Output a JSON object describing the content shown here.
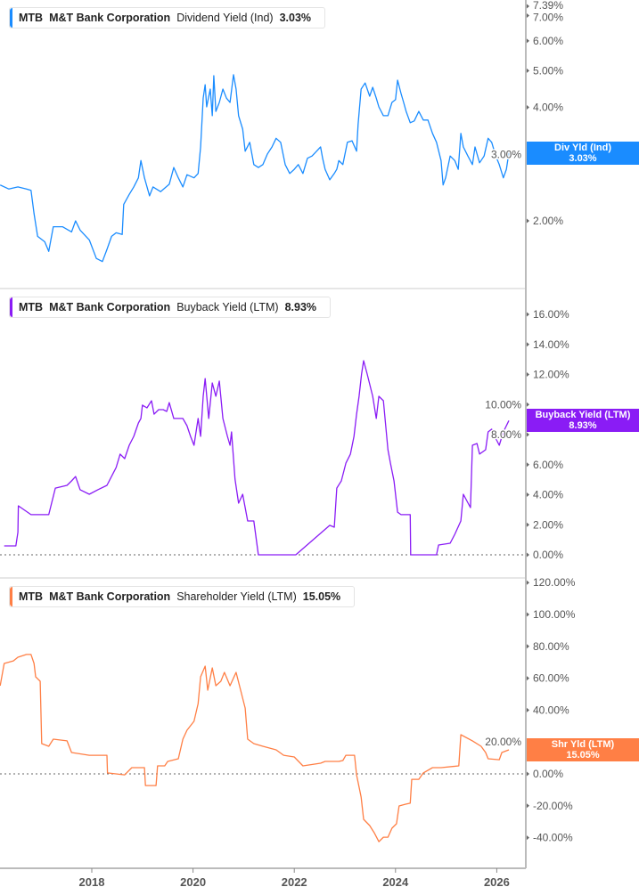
{
  "colors": {
    "div": "#1a8cff",
    "buyback": "#8a1cf5",
    "shareholder": "#ff7f45",
    "axis": "#bbbbbb"
  },
  "panels": [
    {
      "ticker": "MTB",
      "company": "M&T Bank Corporation",
      "metric": "Dividend Yield (Ind)",
      "value": "3.03%",
      "badge_label": "Div Yld (Ind)",
      "badge_value": "3.03%"
    },
    {
      "ticker": "MTB",
      "company": "M&T Bank Corporation",
      "metric": "Buyback Yield (LTM)",
      "value": "8.93%",
      "badge_label": "Buyback Yield (LTM)",
      "badge_value": "8.93%"
    },
    {
      "ticker": "MTB",
      "company": "M&T Bank Corporation",
      "metric": "Shareholder Yield (LTM)",
      "value": "15.05%",
      "badge_label": "Shr Yld (LTM)",
      "badge_value": "15.05%"
    }
  ],
  "chart_data": [
    {
      "type": "line",
      "scale": "log",
      "ylabel_unit": "%",
      "yticks": [
        2,
        3,
        4,
        5,
        6,
        7
      ],
      "ytick_labels": [
        "2.00%",
        "3.00%",
        "4.00%",
        "5.00%",
        "6.00%",
        "7.00%"
      ],
      "ymax_label": "7.39%",
      "last_value": 3.03,
      "points": [
        [
          2016.19,
          2.49
        ],
        [
          2016.36,
          2.43
        ],
        [
          2016.54,
          2.46
        ],
        [
          2016.71,
          2.43
        ],
        [
          2016.8,
          2.41
        ],
        [
          2016.86,
          2.09
        ],
        [
          2016.93,
          1.82
        ],
        [
          2017.07,
          1.76
        ],
        [
          2017.15,
          1.66
        ],
        [
          2017.24,
          1.93
        ],
        [
          2017.42,
          1.93
        ],
        [
          2017.6,
          1.87
        ],
        [
          2017.68,
          2.0
        ],
        [
          2017.77,
          1.89
        ],
        [
          2017.95,
          1.78
        ],
        [
          2018.09,
          1.59
        ],
        [
          2018.21,
          1.56
        ],
        [
          2018.3,
          1.68
        ],
        [
          2018.39,
          1.82
        ],
        [
          2018.48,
          1.86
        ],
        [
          2018.6,
          1.84
        ],
        [
          2018.63,
          2.21
        ],
        [
          2018.74,
          2.35
        ],
        [
          2018.83,
          2.46
        ],
        [
          2018.92,
          2.6
        ],
        [
          2018.97,
          2.89
        ],
        [
          2019.04,
          2.6
        ],
        [
          2019.14,
          2.33
        ],
        [
          2019.21,
          2.46
        ],
        [
          2019.36,
          2.39
        ],
        [
          2019.53,
          2.5
        ],
        [
          2019.62,
          2.77
        ],
        [
          2019.71,
          2.6
        ],
        [
          2019.8,
          2.46
        ],
        [
          2019.88,
          2.65
        ],
        [
          2020.02,
          2.6
        ],
        [
          2020.1,
          2.67
        ],
        [
          2020.15,
          3.14
        ],
        [
          2020.2,
          4.23
        ],
        [
          2020.24,
          4.59
        ],
        [
          2020.27,
          4.01
        ],
        [
          2020.34,
          4.47
        ],
        [
          2020.38,
          3.8
        ],
        [
          2020.41,
          4.85
        ],
        [
          2020.45,
          3.9
        ],
        [
          2020.52,
          4.12
        ],
        [
          2020.59,
          4.47
        ],
        [
          2020.66,
          4.23
        ],
        [
          2020.73,
          4.12
        ],
        [
          2020.8,
          4.88
        ],
        [
          2020.85,
          4.47
        ],
        [
          2020.9,
          3.8
        ],
        [
          2020.98,
          3.5
        ],
        [
          2021.03,
          3.06
        ],
        [
          2021.12,
          3.23
        ],
        [
          2021.2,
          2.82
        ],
        [
          2021.29,
          2.77
        ],
        [
          2021.38,
          2.82
        ],
        [
          2021.47,
          3.01
        ],
        [
          2021.56,
          3.14
        ],
        [
          2021.64,
          3.31
        ],
        [
          2021.73,
          3.23
        ],
        [
          2021.82,
          2.82
        ],
        [
          2021.91,
          2.67
        ],
        [
          2022.0,
          2.74
        ],
        [
          2022.08,
          2.82
        ],
        [
          2022.17,
          2.67
        ],
        [
          2022.26,
          2.93
        ],
        [
          2022.35,
          2.97
        ],
        [
          2022.44,
          3.06
        ],
        [
          2022.52,
          3.14
        ],
        [
          2022.56,
          2.93
        ],
        [
          2022.61,
          2.74
        ],
        [
          2022.7,
          2.57
        ],
        [
          2022.79,
          2.67
        ],
        [
          2022.84,
          2.74
        ],
        [
          2022.88,
          2.89
        ],
        [
          2022.96,
          2.82
        ],
        [
          2023.05,
          3.23
        ],
        [
          2023.14,
          3.26
        ],
        [
          2023.23,
          3.06
        ],
        [
          2023.26,
          3.6
        ],
        [
          2023.32,
          4.47
        ],
        [
          2023.4,
          4.64
        ],
        [
          2023.49,
          4.28
        ],
        [
          2023.55,
          4.52
        ],
        [
          2023.62,
          4.23
        ],
        [
          2023.67,
          4.01
        ],
        [
          2023.76,
          3.8
        ],
        [
          2023.85,
          3.8
        ],
        [
          2023.93,
          4.12
        ],
        [
          2024.0,
          4.19
        ],
        [
          2024.04,
          4.72
        ],
        [
          2024.11,
          4.35
        ],
        [
          2024.16,
          4.12
        ],
        [
          2024.21,
          3.9
        ],
        [
          2024.29,
          3.64
        ],
        [
          2024.37,
          3.68
        ],
        [
          2024.46,
          3.9
        ],
        [
          2024.55,
          3.7
        ],
        [
          2024.64,
          3.7
        ],
        [
          2024.73,
          3.41
        ],
        [
          2024.81,
          3.23
        ],
        [
          2024.9,
          2.89
        ],
        [
          2024.94,
          2.49
        ],
        [
          2024.99,
          2.6
        ],
        [
          2025.08,
          2.97
        ],
        [
          2025.17,
          2.89
        ],
        [
          2025.24,
          2.74
        ],
        [
          2025.29,
          3.41
        ],
        [
          2025.34,
          3.14
        ],
        [
          2025.43,
          2.97
        ],
        [
          2025.52,
          2.82
        ],
        [
          2025.57,
          3.14
        ],
        [
          2025.66,
          2.85
        ],
        [
          2025.75,
          2.97
        ],
        [
          2025.83,
          3.31
        ],
        [
          2025.9,
          3.23
        ],
        [
          2025.98,
          2.97
        ],
        [
          2026.05,
          2.82
        ],
        [
          2026.13,
          2.6
        ],
        [
          2026.19,
          2.74
        ],
        [
          2026.24,
          3.03
        ]
      ]
    },
    {
      "type": "line",
      "scale": "linear",
      "yticks": [
        0,
        2,
        4,
        6,
        8,
        10,
        12,
        14,
        16
      ],
      "ytick_labels": [
        "0.00%",
        "2.00%",
        "4.00%",
        "6.00%",
        "8.00%",
        "10.00%",
        "12.00%",
        "14.00%",
        "16.00%"
      ],
      "zero_line": true,
      "last_value": 8.93,
      "points": [
        [
          2016.27,
          0.59
        ],
        [
          2016.5,
          0.59
        ],
        [
          2016.54,
          1.5
        ],
        [
          2016.55,
          3.26
        ],
        [
          2016.8,
          2.67
        ],
        [
          2017.15,
          2.67
        ],
        [
          2017.28,
          4.44
        ],
        [
          2017.51,
          4.62
        ],
        [
          2017.6,
          4.92
        ],
        [
          2017.68,
          5.21
        ],
        [
          2017.77,
          4.33
        ],
        [
          2017.95,
          4.03
        ],
        [
          2018.12,
          4.33
        ],
        [
          2018.3,
          4.62
        ],
        [
          2018.48,
          5.81
        ],
        [
          2018.56,
          6.7
        ],
        [
          2018.65,
          6.4
        ],
        [
          2018.74,
          7.29
        ],
        [
          2018.83,
          7.88
        ],
        [
          2018.92,
          8.77
        ],
        [
          2018.97,
          9.07
        ],
        [
          2019.0,
          9.96
        ],
        [
          2019.09,
          9.78
        ],
        [
          2019.18,
          10.25
        ],
        [
          2019.23,
          9.36
        ],
        [
          2019.32,
          9.66
        ],
        [
          2019.41,
          9.66
        ],
        [
          2019.48,
          9.54
        ],
        [
          2019.53,
          10.13
        ],
        [
          2019.62,
          9.07
        ],
        [
          2019.8,
          9.07
        ],
        [
          2019.88,
          8.59
        ],
        [
          2019.95,
          7.88
        ],
        [
          2020.02,
          7.29
        ],
        [
          2020.1,
          9.07
        ],
        [
          2020.15,
          7.88
        ],
        [
          2020.2,
          10.55
        ],
        [
          2020.24,
          11.73
        ],
        [
          2020.31,
          9.07
        ],
        [
          2020.38,
          11.44
        ],
        [
          2020.45,
          10.55
        ],
        [
          2020.52,
          11.56
        ],
        [
          2020.59,
          9.07
        ],
        [
          2020.68,
          7.88
        ],
        [
          2020.73,
          7.29
        ],
        [
          2020.76,
          8.18
        ],
        [
          2020.83,
          5.04
        ],
        [
          2020.9,
          3.44
        ],
        [
          2020.98,
          4.03
        ],
        [
          2021.08,
          2.25
        ],
        [
          2021.2,
          2.25
        ],
        [
          2021.29,
          0
        ],
        [
          2022.03,
          0
        ],
        [
          2022.7,
          1.96
        ],
        [
          2022.79,
          1.84
        ],
        [
          2022.84,
          4.44
        ],
        [
          2022.93,
          4.92
        ],
        [
          2023.02,
          6.1
        ],
        [
          2023.11,
          6.7
        ],
        [
          2023.18,
          7.88
        ],
        [
          2023.23,
          9.36
        ],
        [
          2023.28,
          10.55
        ],
        [
          2023.33,
          12.03
        ],
        [
          2023.37,
          12.92
        ],
        [
          2023.44,
          12.03
        ],
        [
          2023.55,
          10.55
        ],
        [
          2023.62,
          9.07
        ],
        [
          2023.67,
          10.55
        ],
        [
          2023.76,
          10.25
        ],
        [
          2023.85,
          6.99
        ],
        [
          2023.9,
          6.1
        ],
        [
          2023.97,
          4.92
        ],
        [
          2024.04,
          2.84
        ],
        [
          2024.11,
          2.67
        ],
        [
          2024.29,
          2.67
        ],
        [
          2024.3,
          0
        ],
        [
          2024.81,
          0
        ],
        [
          2024.85,
          0.65
        ],
        [
          2025.08,
          0.77
        ],
        [
          2025.17,
          1.36
        ],
        [
          2025.29,
          2.25
        ],
        [
          2025.34,
          4.03
        ],
        [
          2025.48,
          3.14
        ],
        [
          2025.52,
          7.29
        ],
        [
          2025.61,
          7.41
        ],
        [
          2025.66,
          6.7
        ],
        [
          2025.78,
          6.99
        ],
        [
          2025.83,
          8.18
        ],
        [
          2025.9,
          8.36
        ],
        [
          2025.96,
          7.88
        ],
        [
          2026.05,
          7.29
        ],
        [
          2026.13,
          8.18
        ],
        [
          2026.24,
          8.93
        ]
      ]
    },
    {
      "type": "line",
      "scale": "linear",
      "yticks": [
        -40,
        -20,
        0,
        20,
        40,
        60,
        80,
        100,
        120
      ],
      "ytick_labels": [
        "-40.00%",
        "-20.00%",
        "0.00%",
        "20.00%",
        "40.00%",
        "60.00%",
        "80.00%",
        "100.00%",
        "120.00%"
      ],
      "zero_line": true,
      "last_value": 15.05,
      "points": [
        [
          2016.19,
          55.3
        ],
        [
          2016.27,
          69.3
        ],
        [
          2016.45,
          70.9
        ],
        [
          2016.54,
          73.2
        ],
        [
          2016.71,
          74.9
        ],
        [
          2016.8,
          74.9
        ],
        [
          2016.86,
          69.3
        ],
        [
          2016.89,
          60.9
        ],
        [
          2016.98,
          58.1
        ],
        [
          2017.01,
          19.0
        ],
        [
          2017.15,
          17.3
        ],
        [
          2017.24,
          21.8
        ],
        [
          2017.51,
          20.7
        ],
        [
          2017.6,
          13.4
        ],
        [
          2017.95,
          11.7
        ],
        [
          2018.3,
          11.7
        ],
        [
          2018.31,
          0.6
        ],
        [
          2018.65,
          -0.6
        ],
        [
          2018.79,
          3.9
        ],
        [
          2019.04,
          3.9
        ],
        [
          2019.06,
          -7.3
        ],
        [
          2019.27,
          -7.3
        ],
        [
          2019.3,
          5.0
        ],
        [
          2019.44,
          5.0
        ],
        [
          2019.5,
          7.8
        ],
        [
          2019.71,
          9.5
        ],
        [
          2019.8,
          21.8
        ],
        [
          2019.88,
          27.4
        ],
        [
          2020.02,
          33.0
        ],
        [
          2020.1,
          44.1
        ],
        [
          2020.15,
          60.9
        ],
        [
          2020.24,
          67.6
        ],
        [
          2020.29,
          52.5
        ],
        [
          2020.38,
          66.5
        ],
        [
          2020.45,
          55.3
        ],
        [
          2020.55,
          58.1
        ],
        [
          2020.62,
          63.7
        ],
        [
          2020.73,
          55.3
        ],
        [
          2020.85,
          63.7
        ],
        [
          2020.94,
          52.5
        ],
        [
          2021.03,
          41.3
        ],
        [
          2021.08,
          21.8
        ],
        [
          2021.2,
          19.0
        ],
        [
          2021.38,
          17.3
        ],
        [
          2021.64,
          15.1
        ],
        [
          2021.79,
          11.7
        ],
        [
          2022.0,
          10.6
        ],
        [
          2022.17,
          5.0
        ],
        [
          2022.52,
          6.7
        ],
        [
          2022.61,
          7.8
        ],
        [
          2022.88,
          7.8
        ],
        [
          2022.96,
          8.4
        ],
        [
          2023.02,
          11.7
        ],
        [
          2023.19,
          11.7
        ],
        [
          2023.23,
          -0.6
        ],
        [
          2023.32,
          -14.5
        ],
        [
          2023.37,
          -28.5
        ],
        [
          2023.49,
          -32.4
        ],
        [
          2023.58,
          -36.9
        ],
        [
          2023.67,
          -42.5
        ],
        [
          2023.76,
          -39.7
        ],
        [
          2023.85,
          -39.7
        ],
        [
          2023.93,
          -34.1
        ],
        [
          2024.02,
          -31.3
        ],
        [
          2024.07,
          -20.1
        ],
        [
          2024.2,
          -19.0
        ],
        [
          2024.29,
          -18.4
        ],
        [
          2024.32,
          -3.4
        ],
        [
          2024.46,
          -3.4
        ],
        [
          2024.55,
          0.6
        ],
        [
          2024.73,
          3.9
        ],
        [
          2024.9,
          3.9
        ],
        [
          2025.25,
          5.0
        ],
        [
          2025.29,
          24.6
        ],
        [
          2025.52,
          20.7
        ],
        [
          2025.69,
          17.3
        ],
        [
          2025.78,
          13.4
        ],
        [
          2025.83,
          9.5
        ],
        [
          2026.05,
          8.9
        ],
        [
          2026.1,
          13.4
        ],
        [
          2026.24,
          15.1
        ]
      ]
    }
  ],
  "xaxis": {
    "ticks": [
      2018,
      2020,
      2022,
      2024,
      2026
    ],
    "labels": [
      "2018",
      "2020",
      "2022",
      "2024",
      "2026"
    ]
  }
}
